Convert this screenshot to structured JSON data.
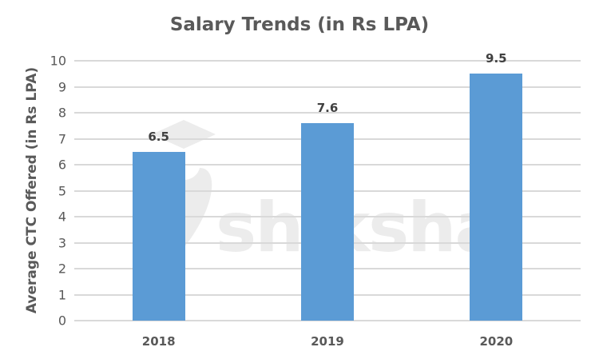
{
  "chart_data": {
    "type": "bar",
    "title": "Salary Trends (in Rs LPA)",
    "xlabel": "",
    "ylabel": "Average CTC Offered (in Rs LPA)",
    "categories": [
      "2018",
      "2019",
      "2020"
    ],
    "values": [
      6.5,
      7.6,
      9.5
    ],
    "data_labels": [
      "6.5",
      "7.6",
      "9.5"
    ],
    "ylim": [
      0,
      10
    ],
    "yticks": [
      "0",
      "1",
      "2",
      "3",
      "4",
      "5",
      "6",
      "7",
      "8",
      "9",
      "10"
    ],
    "grid": true,
    "legend": null,
    "bar_color": "#5b9bd5"
  },
  "watermark": "shiksha"
}
